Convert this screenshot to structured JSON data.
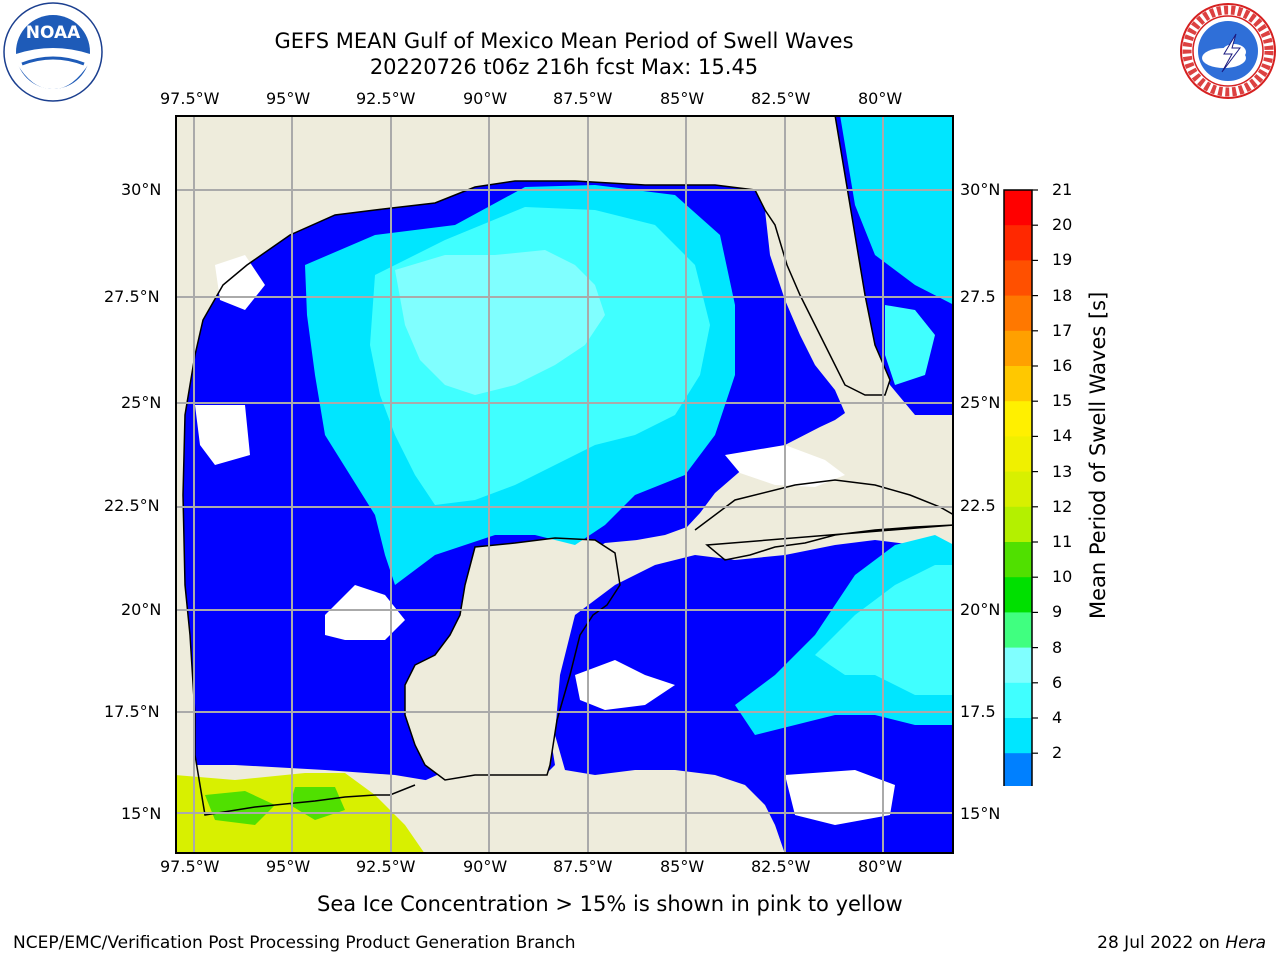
{
  "header": {
    "title_line1": "GEFS MEAN Gulf of Mexico Mean Period of Swell Waves",
    "title_line2": "20220726 t06z 216h fcst   Max: 15.45"
  },
  "logos": {
    "noaa_text": "NOAA",
    "noaa_ring": "NATIONAL OCEANIC AND ATMOSPHERIC ADMINISTRATION · U.S. DEPARTMENT OF COMMERCE",
    "nws_ring": "NATIONAL WEATHER SERVICE"
  },
  "map": {
    "lon_labels": [
      "97.5°W",
      "95°W",
      "92.5°W",
      "90°W",
      "87.5°W",
      "85°W",
      "82.5°W",
      "80°W"
    ],
    "lat_labels_left": [
      "30°N",
      "27.5°N",
      "25°N",
      "22.5°N",
      "20°N",
      "17.5°N",
      "15°N"
    ],
    "lat_labels_right": [
      "30°N",
      "27.5",
      "25°N",
      "22.5",
      "20°N",
      "17.5",
      "15°N"
    ],
    "colors": {
      "land": "#eeecdc",
      "ocean_le2": "#0000ff",
      "gridline": "#aaaaaa"
    }
  },
  "colorbar": {
    "label": "Mean Period of Swell Waves [s]",
    "ticks": [
      "21",
      "20",
      "19",
      "18",
      "17",
      "16",
      "15",
      "14",
      "13",
      "12",
      "11",
      "10",
      "9",
      "8",
      "6",
      "4",
      "2"
    ],
    "colors": [
      "#ff0000",
      "#ff2800",
      "#ff5000",
      "#ff7800",
      "#ffa000",
      "#ffc800",
      "#fff000",
      "#f0f000",
      "#d8f000",
      "#b4f000",
      "#50e000",
      "#00e000",
      "#40ff80",
      "#80ffff",
      "#40ffff",
      "#00e6ff",
      "#0080ff",
      "#0000ff"
    ]
  },
  "footer": {
    "note": "Sea Ice Concentration > 15% is shown in pink to yellow",
    "left": "NCEP/EMC/Verification Post Processing Product Generation Branch",
    "right_prefix": "28 Jul 2022 on ",
    "right_host": "Hera"
  }
}
